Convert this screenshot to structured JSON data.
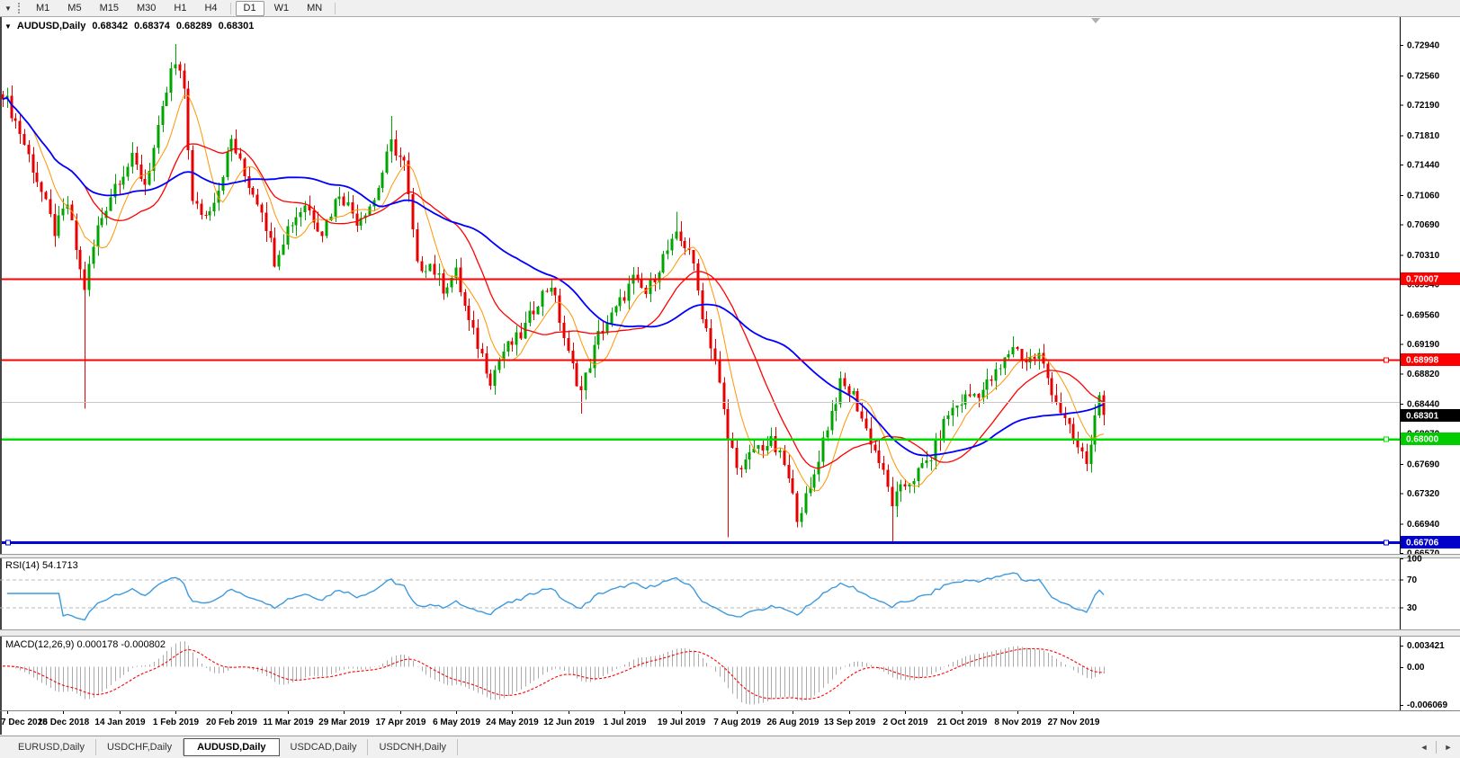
{
  "toolbar": {
    "dropdown_icon": "▼",
    "timeframes": [
      {
        "label": "M1",
        "active": false
      },
      {
        "label": "M5",
        "active": false
      },
      {
        "label": "M15",
        "active": false
      },
      {
        "label": "M30",
        "active": false
      },
      {
        "label": "H1",
        "active": false
      },
      {
        "label": "H4",
        "active": false
      },
      {
        "label": "D1",
        "active": true
      },
      {
        "label": "W1",
        "active": false
      },
      {
        "label": "MN",
        "active": false
      }
    ]
  },
  "chart_header": {
    "collapse_icon": "▼",
    "symbol": "AUDUSD,Daily",
    "open": "0.68342",
    "high": "0.68374",
    "low": "0.68289",
    "close": "0.68301"
  },
  "price_axis": {
    "ticks": [
      "0.72940",
      "0.72560",
      "0.72190",
      "0.71810",
      "0.71440",
      "0.71060",
      "0.70690",
      "0.70310",
      "0.69940",
      "0.69560",
      "0.69190",
      "0.68820",
      "0.68440",
      "0.68070",
      "0.67690",
      "0.67320",
      "0.66940",
      "0.66570"
    ]
  },
  "rsi_pane": {
    "title": "RSI(14) 54.1713",
    "levels": [
      "100",
      "70",
      "30"
    ]
  },
  "macd_pane": {
    "title": "MACD(12,26,9) 0.000178 -0.000802",
    "axis_labels": [
      "0.003421",
      "0.00",
      "-0.006069"
    ]
  },
  "date_axis": {
    "labels": [
      "7 Dec 2018",
      "26 Dec 2018",
      "14 Jan 2019",
      "1 Feb 2019",
      "20 Feb 2019",
      "11 Mar 2019",
      "29 Mar 2019",
      "17 Apr 2019",
      "6 May 2019",
      "24 May 2019",
      "12 Jun 2019",
      "1 Jul 2019",
      "19 Jul 2019",
      "7 Aug 2019",
      "26 Aug 2019",
      "13 Sep 2019",
      "2 Oct 2019",
      "21 Oct 2019",
      "8 Nov 2019",
      "27 Nov 2019"
    ]
  },
  "tabs": [
    {
      "label": "EURUSD,Daily",
      "active": false
    },
    {
      "label": "USDCHF,Daily",
      "active": false
    },
    {
      "label": "AUDUSD,Daily",
      "active": true
    },
    {
      "label": "USDCAD,Daily",
      "active": false
    },
    {
      "label": "USDCNH,Daily",
      "active": false
    }
  ],
  "tab_scroll": {
    "left_icon": "◄",
    "right_icon": "►"
  },
  "chart_data": {
    "type": "candlestick",
    "symbol": "AUDUSD",
    "timeframe": "Daily",
    "bars": 256,
    "ylim": [
      0.6656,
      0.7329
    ],
    "current_price": 0.68301,
    "current_price_label": "0.68301",
    "up_color": "#00A600",
    "down_color": "#E60000",
    "close_anchors": [
      [
        0,
        0.7235
      ],
      [
        4,
        0.7185
      ],
      [
        8,
        0.7125
      ],
      [
        12,
        0.706
      ],
      [
        15,
        0.7095
      ],
      [
        18,
        0.701
      ],
      [
        19,
        0.699
      ],
      [
        22,
        0.7065
      ],
      [
        26,
        0.712
      ],
      [
        30,
        0.715
      ],
      [
        33,
        0.712
      ],
      [
        36,
        0.7185
      ],
      [
        39,
        0.726
      ],
      [
        40,
        0.7268
      ],
      [
        42,
        0.724
      ],
      [
        44,
        0.7095
      ],
      [
        47,
        0.708
      ],
      [
        50,
        0.7115
      ],
      [
        53,
        0.7175
      ],
      [
        56,
        0.713
      ],
      [
        60,
        0.709
      ],
      [
        63,
        0.7025
      ],
      [
        66,
        0.7065
      ],
      [
        70,
        0.7095
      ],
      [
        74,
        0.706
      ],
      [
        78,
        0.711
      ],
      [
        82,
        0.7075
      ],
      [
        86,
        0.71
      ],
      [
        90,
        0.717
      ],
      [
        93,
        0.7145
      ],
      [
        96,
        0.7015
      ],
      [
        99,
        0.702
      ],
      [
        102,
        0.699
      ],
      [
        105,
        0.7008
      ],
      [
        108,
        0.6945
      ],
      [
        111,
        0.6905
      ],
      [
        113,
        0.6875
      ],
      [
        116,
        0.691
      ],
      [
        120,
        0.693
      ],
      [
        124,
        0.6975
      ],
      [
        127,
        0.6995
      ],
      [
        131,
        0.6905
      ],
      [
        134,
        0.686
      ],
      [
        138,
        0.693
      ],
      [
        142,
        0.6962
      ],
      [
        146,
        0.7
      ],
      [
        149,
        0.6982
      ],
      [
        153,
        0.7028
      ],
      [
        156,
        0.7052
      ],
      [
        159,
        0.704
      ],
      [
        162,
        0.6958
      ],
      [
        165,
        0.69
      ],
      [
        168,
        0.68
      ],
      [
        171,
        0.6758
      ],
      [
        174,
        0.6788
      ],
      [
        178,
        0.6795
      ],
      [
        181,
        0.6768
      ],
      [
        184,
        0.6705
      ],
      [
        187,
        0.6735
      ],
      [
        190,
        0.68
      ],
      [
        194,
        0.6868
      ],
      [
        197,
        0.6855
      ],
      [
        200,
        0.6812
      ],
      [
        203,
        0.6772
      ],
      [
        206,
        0.672
      ],
      [
        209,
        0.6742
      ],
      [
        212,
        0.6758
      ],
      [
        215,
        0.6778
      ],
      [
        219,
        0.6832
      ],
      [
        223,
        0.6852
      ],
      [
        227,
        0.6862
      ],
      [
        231,
        0.6888
      ],
      [
        234,
        0.6918
      ],
      [
        237,
        0.6898
      ],
      [
        240,
        0.6905
      ],
      [
        243,
        0.6862
      ],
      [
        246,
        0.6822
      ],
      [
        249,
        0.6788
      ],
      [
        251,
        0.6772
      ],
      [
        252,
        0.679
      ],
      [
        253,
        0.6838
      ],
      [
        254,
        0.6846
      ],
      [
        255,
        0.68301
      ]
    ],
    "high_overrides": {
      "40": 0.7295,
      "90": 0.7205,
      "156": 0.7085,
      "234": 0.6929
    },
    "low_overrides": {
      "19": 0.6838,
      "113": 0.6862,
      "134": 0.6832,
      "168": 0.6677,
      "184": 0.6689,
      "206": 0.6671
    },
    "moving_averages": [
      {
        "period": 8,
        "color": "#FF9500",
        "width": 1
      },
      {
        "period": 20,
        "color": "#FF0000",
        "width": 1.3
      },
      {
        "period": 45,
        "color": "#0000FF",
        "width": 1.8
      }
    ],
    "hlines": [
      {
        "price": 0.70007,
        "label": "0.70007",
        "color": "#FF0000",
        "width": 2,
        "badge_bg": "#FF0000",
        "handles": []
      },
      {
        "price": 0.68998,
        "label": "0.68998",
        "color": "#FF0000",
        "width": 2,
        "badge_bg": "#FF0000",
        "handles": [
          "right"
        ]
      },
      {
        "price": 0.6847,
        "label": "",
        "color": "#C8C8C8",
        "width": 1,
        "badge_bg": "",
        "handles": []
      },
      {
        "price": 0.68,
        "label": "0.68000",
        "color": "#00DC00",
        "width": 2.5,
        "badge_bg": "#00CC00",
        "handles": [
          "right"
        ]
      },
      {
        "price": 0.66706,
        "label": "0.66706",
        "color": "#0000D8",
        "width": 3,
        "badge_bg": "#0000C8",
        "handles": [
          "left",
          "right"
        ]
      }
    ],
    "rsi": {
      "period": 14,
      "color": "#3E9ADE",
      "level_values": [
        100,
        70,
        30
      ],
      "dashed_levels": [
        70,
        30
      ]
    },
    "macd": {
      "fast": 12,
      "slow": 26,
      "signal": 9,
      "hist_color": "#ABABAB",
      "signal_color": "#FF0000"
    }
  }
}
